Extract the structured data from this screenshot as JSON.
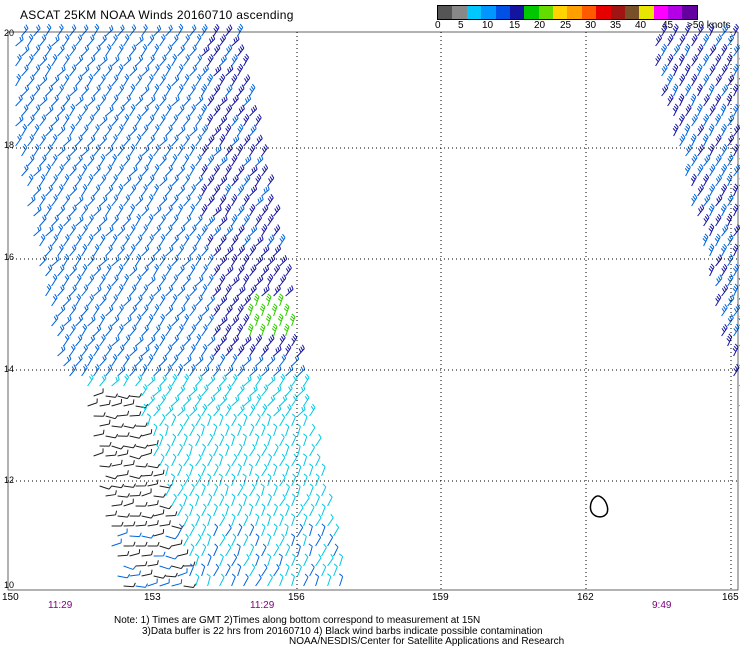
{
  "title": "ASCAT 25KM NOAA Winds 20160710 ascending",
  "colorbar": {
    "colors": [
      "#555555",
      "#888888",
      "#00c8ff",
      "#0096ff",
      "#0050e6",
      "#1414a0",
      "#00c800",
      "#64dc00",
      "#ffd200",
      "#ffa000",
      "#ff5a00",
      "#e60000",
      "#a01414",
      "#785028",
      "#e6e600",
      "#ff00ff",
      "#b400e6",
      "#6400a0"
    ],
    "labels": [
      "0",
      "5",
      "10",
      "15",
      "20",
      "25",
      "30",
      "35",
      "40",
      "45",
      ">50 knots"
    ]
  },
  "map": {
    "lat_labels": [
      "20",
      "18",
      "16",
      "14",
      "12",
      "10"
    ],
    "lon_labels": [
      "150",
      "153",
      "156",
      "159",
      "162",
      "165"
    ],
    "time_labels": [
      "11:29",
      "11:29",
      "9:49"
    ]
  },
  "notes": {
    "line1": "Note: 1) Times are GMT 2)Times along bottom correspond to measurement at 15N",
    "line2": "3)Data buffer is 22 hrs from 20160710 4) Black wind barbs indicate possible contamination",
    "line3": "NOAA/NESDIS/Center for Satellite Applications and Research"
  },
  "wind_colors": {
    "black": "#202020",
    "light_blue": "#00c8e6",
    "blue": "#0064dc",
    "dark_blue": "#1414a0",
    "green": "#32c800"
  }
}
